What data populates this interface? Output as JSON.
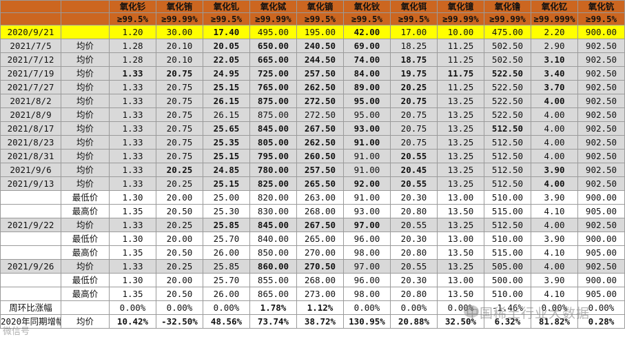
{
  "headers": {
    "names": [
      "氧化钐",
      "氧化铕",
      "氧化钆",
      "氧化铽",
      "氧化镝",
      "氧化钬",
      "氧化铒",
      "氧化镱",
      "氧化镥",
      "氧化钇",
      "氧化钪"
    ],
    "purity": [
      "≥99.5%",
      "≥99.99%",
      "≥99.5%",
      "≥99.99%",
      "≥99.5%",
      "≥99.5%",
      "≥99.5%",
      "≥99.99%",
      "≥99.99%",
      "≥99.999%",
      "≥99.5%"
    ]
  },
  "rows": [
    {
      "label": "2020/9/21",
      "type": "",
      "bg": "ref",
      "values": [
        "1.20",
        "30.00",
        "17.40",
        "495.00",
        "195.00",
        "42.00",
        "17.00",
        "10.00",
        "475.00",
        "2.20",
        "900.00"
      ],
      "colors": [
        "",
        "",
        "dn",
        "",
        "",
        "dn",
        "",
        "",
        "",
        "",
        ""
      ]
    },
    {
      "label": "2021/7/5",
      "type": "均价",
      "bg": "g",
      "values": [
        "1.28",
        "20.10",
        "20.05",
        "650.00",
        "240.50",
        "69.00",
        "18.25",
        "11.25",
        "502.50",
        "2.90",
        "902.50"
      ],
      "colors": [
        "",
        "",
        "up",
        "up",
        "up",
        "up",
        "",
        "",
        "",
        "",
        ""
      ]
    },
    {
      "label": "2021/7/12",
      "type": "均价",
      "bg": "g",
      "values": [
        "1.28",
        "20.10",
        "22.05",
        "665.00",
        "244.50",
        "74.00",
        "18.75",
        "11.25",
        "502.50",
        "3.10",
        "902.50"
      ],
      "colors": [
        "",
        "",
        "up",
        "up",
        "up",
        "up",
        "up",
        "",
        "",
        "up",
        ""
      ]
    },
    {
      "label": "2021/7/19",
      "type": "均价",
      "bg": "g",
      "values": [
        "1.33",
        "20.75",
        "24.95",
        "725.00",
        "257.50",
        "84.00",
        "19.75",
        "11.75",
        "522.50",
        "3.40",
        "902.50"
      ],
      "colors": [
        "up",
        "up",
        "up",
        "up",
        "up",
        "up",
        "up",
        "up",
        "up",
        "up",
        ""
      ]
    },
    {
      "label": "2021/7/27",
      "type": "均价",
      "bg": "g",
      "values": [
        "1.33",
        "20.75",
        "25.15",
        "765.00",
        "262.50",
        "89.00",
        "20.25",
        "11.25",
        "522.50",
        "3.70",
        "902.50"
      ],
      "colors": [
        "",
        "",
        "up",
        "up",
        "up",
        "up",
        "up",
        "",
        "",
        "up",
        ""
      ]
    },
    {
      "label": "2021/8/2",
      "type": "均价",
      "bg": "g",
      "values": [
        "1.33",
        "20.75",
        "26.15",
        "875.00",
        "272.50",
        "95.00",
        "20.75",
        "13.25",
        "522.50",
        "4.00",
        "902.50"
      ],
      "colors": [
        "",
        "",
        "up",
        "up",
        "up",
        "up",
        "up",
        "",
        "",
        "up",
        ""
      ]
    },
    {
      "label": "2021/8/9",
      "type": "均价",
      "bg": "g",
      "values": [
        "1.33",
        "20.75",
        "26.15",
        "875.00",
        "272.50",
        "95.00",
        "20.75",
        "13.25",
        "522.50",
        "4.00",
        "902.50"
      ],
      "colors": [
        "",
        "",
        "",
        "",
        "",
        "",
        "",
        "",
        "",
        "",
        ""
      ]
    },
    {
      "label": "2021/8/17",
      "type": "均价",
      "bg": "g",
      "values": [
        "1.33",
        "20.75",
        "25.65",
        "845.00",
        "267.50",
        "93.00",
        "20.75",
        "13.25",
        "512.50",
        "4.00",
        "902.50"
      ],
      "colors": [
        "",
        "",
        "dn",
        "dn",
        "dn",
        "dn",
        "",
        "",
        "dn",
        "",
        ""
      ]
    },
    {
      "label": "2021/8/23",
      "type": "均价",
      "bg": "g",
      "values": [
        "1.33",
        "20.75",
        "25.35",
        "805.00",
        "262.50",
        "91.00",
        "20.75",
        "13.25",
        "512.50",
        "4.00",
        "902.50"
      ],
      "colors": [
        "",
        "",
        "dn",
        "dn",
        "dn",
        "dn",
        "",
        "",
        "",
        "",
        ""
      ]
    },
    {
      "label": "2021/8/31",
      "type": "均价",
      "bg": "g",
      "values": [
        "1.33",
        "20.75",
        "25.15",
        "795.00",
        "260.50",
        "91.00",
        "20.55",
        "13.25",
        "512.50",
        "4.00",
        "902.50"
      ],
      "colors": [
        "",
        "",
        "dn",
        "dn",
        "dn",
        "",
        "dn",
        "",
        "",
        "",
        ""
      ]
    },
    {
      "label": "2021/9/6",
      "type": "均价",
      "bg": "g",
      "values": [
        "1.33",
        "20.25",
        "24.85",
        "780.00",
        "257.50",
        "91.00",
        "20.45",
        "13.25",
        "512.50",
        "3.90",
        "902.50"
      ],
      "colors": [
        "",
        "dn",
        "dn",
        "dn",
        "dn",
        "",
        "dn",
        "",
        "",
        "dn",
        ""
      ]
    },
    {
      "label": "2021/9/13",
      "type": "均价",
      "bg": "g",
      "values": [
        "1.33",
        "20.25",
        "25.15",
        "825.00",
        "265.50",
        "92.00",
        "20.55",
        "13.25",
        "512.50",
        "4.00",
        "902.50"
      ],
      "colors": [
        "",
        "",
        "up",
        "up",
        "up",
        "up",
        "up",
        "",
        "",
        "up",
        ""
      ]
    },
    {
      "label": "",
      "type": "最低价",
      "bg": "",
      "values": [
        "1.30",
        "20.00",
        "25.00",
        "820.00",
        "263.00",
        "91.00",
        "20.30",
        "13.00",
        "510.00",
        "3.90",
        "900.00"
      ],
      "colors": [
        "",
        "",
        "",
        "",
        "",
        "",
        "",
        "",
        "",
        "",
        ""
      ]
    },
    {
      "label": "",
      "type": "最高价",
      "bg": "",
      "values": [
        "1.35",
        "20.50",
        "25.30",
        "830.00",
        "268.00",
        "93.00",
        "20.80",
        "13.50",
        "515.00",
        "4.10",
        "905.00"
      ],
      "colors": [
        "",
        "",
        "",
        "",
        "",
        "",
        "",
        "",
        "",
        "",
        ""
      ]
    },
    {
      "label": "2021/9/22",
      "type": "均价",
      "bg": "g",
      "values": [
        "1.33",
        "20.25",
        "25.85",
        "845.00",
        "267.50",
        "97.00",
        "20.55",
        "13.25",
        "512.50",
        "4.00",
        "902.50"
      ],
      "colors": [
        "",
        "",
        "up",
        "up",
        "up",
        "up",
        "",
        "",
        "",
        "",
        ""
      ]
    },
    {
      "label": "",
      "type": "最低价",
      "bg": "",
      "values": [
        "1.30",
        "20.00",
        "25.70",
        "840.00",
        "265.00",
        "96.00",
        "20.30",
        "13.00",
        "510.00",
        "3.90",
        "900.00"
      ],
      "colors": [
        "",
        "",
        "",
        "",
        "",
        "",
        "",
        "",
        "",
        "",
        ""
      ]
    },
    {
      "label": "",
      "type": "最高价",
      "bg": "",
      "values": [
        "1.35",
        "20.50",
        "26.00",
        "850.00",
        "270.00",
        "98.00",
        "20.80",
        "13.50",
        "515.00",
        "4.10",
        "905.00"
      ],
      "colors": [
        "",
        "",
        "",
        "",
        "",
        "",
        "",
        "",
        "",
        "",
        ""
      ]
    },
    {
      "label": "2021/9/26",
      "type": "均价",
      "bg": "g",
      "values": [
        "1.33",
        "20.25",
        "25.85",
        "860.00",
        "270.50",
        "97.00",
        "20.55",
        "13.25",
        "505.00",
        "4.00",
        "902.50"
      ],
      "colors": [
        "",
        "",
        "",
        "up",
        "up",
        "",
        "",
        "",
        "",
        "",
        ""
      ]
    },
    {
      "label": "",
      "type": "最低价",
      "bg": "",
      "values": [
        "1.30",
        "20.00",
        "25.70",
        "855.00",
        "268.00",
        "96.00",
        "20.30",
        "13.00",
        "500.00",
        "3.90",
        "900.00"
      ],
      "colors": [
        "",
        "",
        "",
        "",
        "",
        "",
        "",
        "",
        "",
        "",
        ""
      ]
    },
    {
      "label": "",
      "type": "最高价",
      "bg": "",
      "values": [
        "1.35",
        "20.50",
        "26.00",
        "865.00",
        "273.00",
        "98.00",
        "20.80",
        "13.50",
        "510.00",
        "4.10",
        "905.00"
      ],
      "colors": [
        "",
        "",
        "",
        "",
        "",
        "",
        "",
        "",
        "",
        "",
        ""
      ]
    },
    {
      "label": "周环比涨幅",
      "type": "",
      "bg": "",
      "values": [
        "0.00%",
        "0.00%",
        "0.00%",
        "1.78%",
        "1.12%",
        "0.00%",
        "0.00%",
        "0.00%",
        "-1.46%",
        "0.00%",
        "0.00%"
      ],
      "colors": [
        "",
        "",
        "",
        "up",
        "up",
        "",
        "",
        "",
        "",
        "",
        ""
      ]
    },
    {
      "label": "2020年同期增幅",
      "type": "均价",
      "bg": "",
      "values": [
        "10.42%",
        "-32.50%",
        "48.56%",
        "73.74%",
        "38.72%",
        "130.95%",
        "20.88%",
        "32.50%",
        "6.32%",
        "81.82%",
        "0.28%"
      ],
      "colors": [
        "up",
        "dn",
        "up",
        "up",
        "up",
        "up",
        "up",
        "up",
        "up",
        "up",
        "up"
      ]
    }
  ],
  "watermark": "中国稀土行业大数据",
  "watermark_small": "微信号",
  "colors": {
    "header_bg": "#cc6620",
    "ref_row": "#ffff00",
    "grey_row": "#d9d9d9",
    "up": "#ee1111",
    "down": "#11aa22"
  }
}
